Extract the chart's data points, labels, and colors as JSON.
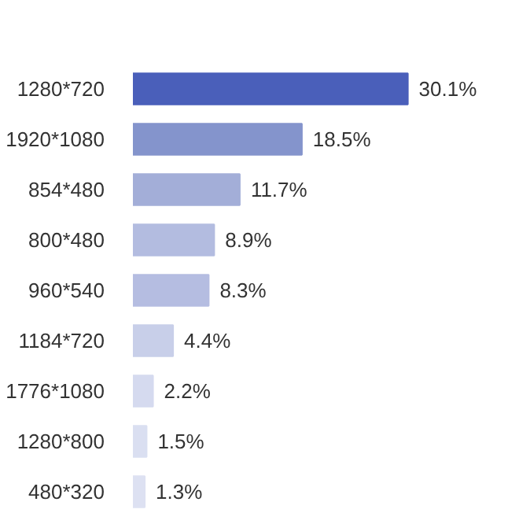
{
  "chart_data": {
    "type": "bar",
    "orientation": "horizontal",
    "categories": [
      "1280*720",
      "1920*1080",
      "854*480",
      "800*480",
      "960*540",
      "1184*720",
      "1776*1080",
      "1280*800",
      "480*320"
    ],
    "values": [
      30.1,
      18.5,
      11.7,
      8.9,
      8.3,
      4.4,
      2.2,
      1.5,
      1.3
    ],
    "value_labels": [
      "30.1%",
      "18.5%",
      "11.7%",
      "8.9%",
      "8.3%",
      "4.4%",
      "2.2%",
      "1.5%",
      "1.3%"
    ],
    "colors": [
      "#4a5fba",
      "#8494cc",
      "#a3aed8",
      "#b3bce0",
      "#b5bde1",
      "#c8cfe9",
      "#d5daef",
      "#dadff1",
      "#dde1f2"
    ]
  }
}
